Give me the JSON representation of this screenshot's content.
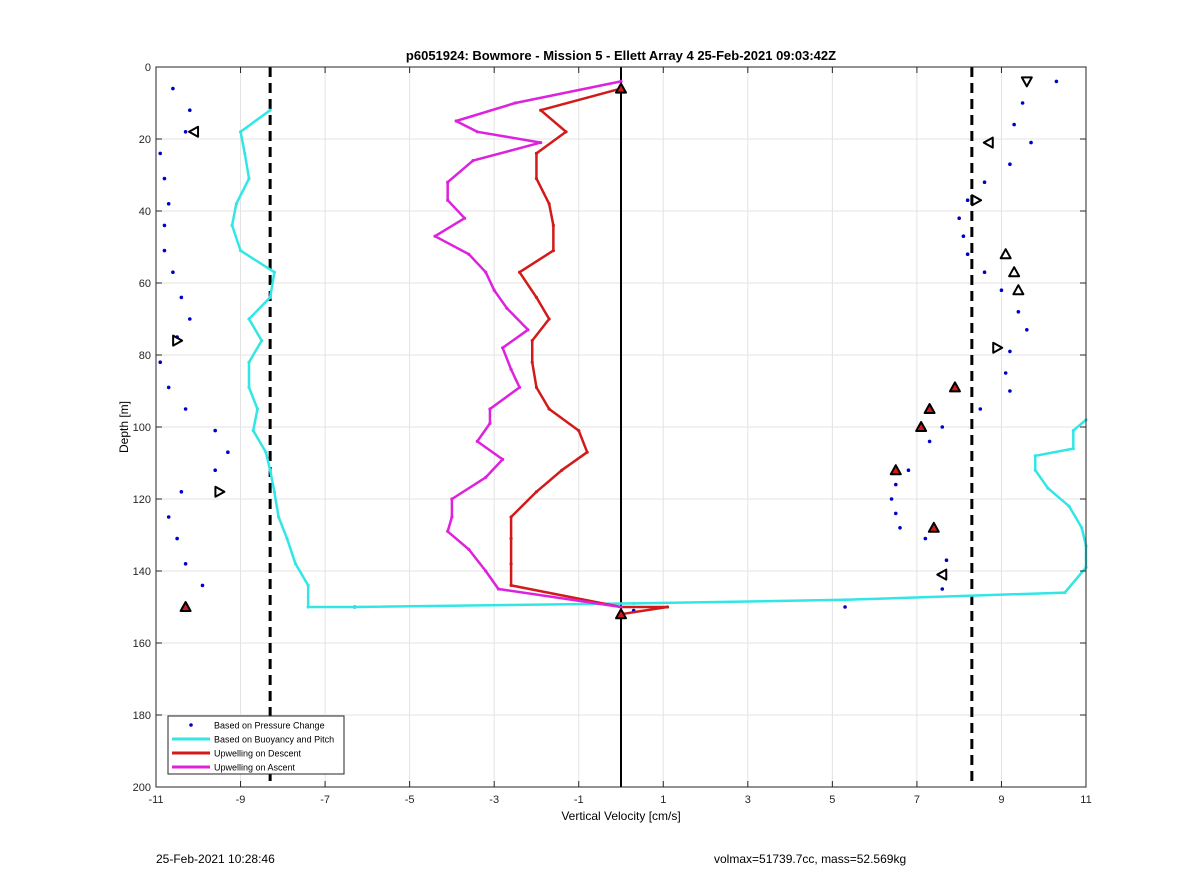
{
  "chart_data": {
    "type": "line",
    "title": "p6051924: Bowmore - Mission 5 - Ellett Array 4 25-Feb-2021 09:03:42Z",
    "xlabel": "Vertical Velocity [cm/s]",
    "ylabel": "Depth [m]",
    "xlim": [
      -11,
      11
    ],
    "ylim": [
      0,
      200
    ],
    "y_reversed": true,
    "grid": true,
    "legend_position": "bottom-left",
    "x_ticks": [
      "-11",
      "-9",
      "-7",
      "-5",
      "-3",
      "-1",
      "1",
      "3",
      "5",
      "7",
      "9",
      "11"
    ],
    "y_ticks": [
      "0",
      "20",
      "40",
      "60",
      "80",
      "100",
      "120",
      "140",
      "160",
      "180",
      "200"
    ],
    "vertical_lines": [
      {
        "x": -8.3,
        "style": "dashed",
        "color": "#000000"
      },
      {
        "x": 0,
        "style": "solid",
        "color": "#000000"
      },
      {
        "x": 8.3,
        "style": "dashed",
        "color": "#000000"
      }
    ],
    "series": [
      {
        "name": "Based on Pressure Change",
        "style": "dots",
        "color": "#0000cc",
        "points": [
          [
            10.3,
            4
          ],
          [
            -10.6,
            6
          ],
          [
            -10.2,
            12
          ],
          [
            9.5,
            10
          ],
          [
            -10.3,
            18
          ],
          [
            9.3,
            16
          ],
          [
            9.7,
            21
          ],
          [
            -10.9,
            24
          ],
          [
            9.2,
            27
          ],
          [
            -10.8,
            31
          ],
          [
            8.6,
            32
          ],
          [
            -10.7,
            38
          ],
          [
            8.2,
            37
          ],
          [
            8.0,
            42
          ],
          [
            -10.8,
            44
          ],
          [
            8.1,
            47
          ],
          [
            -10.8,
            51
          ],
          [
            8.2,
            52
          ],
          [
            -10.6,
            57
          ],
          [
            8.6,
            57
          ],
          [
            -10.4,
            64
          ],
          [
            9.0,
            62
          ],
          [
            -10.2,
            70
          ],
          [
            9.4,
            68
          ],
          [
            -10.5,
            75
          ],
          [
            9.6,
            73
          ],
          [
            -10.9,
            82
          ],
          [
            9.2,
            79
          ],
          [
            -10.7,
            89
          ],
          [
            9.1,
            85
          ],
          [
            -10.3,
            95
          ],
          [
            9.2,
            90
          ],
          [
            8.5,
            95
          ],
          [
            -9.6,
            101
          ],
          [
            7.6,
            100
          ],
          [
            -9.3,
            107
          ],
          [
            7.3,
            104
          ],
          [
            -9.6,
            112
          ],
          [
            6.8,
            112
          ],
          [
            -10.4,
            118
          ],
          [
            6.5,
            116
          ],
          [
            -10.7,
            125
          ],
          [
            6.4,
            120
          ],
          [
            6.5,
            124
          ],
          [
            -10.5,
            131
          ],
          [
            6.6,
            128
          ],
          [
            7.2,
            131
          ],
          [
            -10.3,
            138
          ],
          [
            7.7,
            137
          ],
          [
            -9.9,
            144
          ],
          [
            7.6,
            145
          ],
          [
            -6.3,
            150
          ],
          [
            5.3,
            150
          ],
          [
            0.3,
            151
          ]
        ]
      },
      {
        "name": "Based on Buoyancy and Pitch",
        "style": "line",
        "color": "#33e6e6",
        "points": [
          [
            -8.3,
            12
          ],
          [
            -9.0,
            18
          ],
          [
            -8.9,
            24
          ],
          [
            -8.8,
            31
          ],
          [
            -9.1,
            38
          ],
          [
            -9.2,
            44
          ],
          [
            -9.0,
            51
          ],
          [
            -8.2,
            57
          ],
          [
            -8.3,
            64
          ],
          [
            -8.8,
            70
          ],
          [
            -8.5,
            76
          ],
          [
            -8.8,
            82
          ],
          [
            -8.8,
            89
          ],
          [
            -8.6,
            95
          ],
          [
            -8.7,
            101
          ],
          [
            -8.4,
            107
          ],
          [
            -8.3,
            112
          ],
          [
            -8.2,
            118
          ],
          [
            -8.1,
            125
          ],
          [
            -7.9,
            131
          ],
          [
            -7.7,
            138
          ],
          [
            -7.4,
            144
          ],
          [
            -7.4,
            150
          ],
          [
            -6.3,
            150
          ],
          [
            0.3,
            149
          ],
          [
            5.3,
            148
          ],
          [
            10.5,
            146
          ],
          [
            11.0,
            139
          ],
          [
            11.0,
            133
          ],
          [
            10.9,
            128
          ],
          [
            10.6,
            122
          ],
          [
            10.1,
            117
          ],
          [
            9.8,
            112
          ],
          [
            9.8,
            108
          ],
          [
            10.7,
            106
          ],
          [
            10.7,
            101
          ],
          [
            11.0,
            98
          ]
        ]
      },
      {
        "name": "Upwelling on Descent",
        "style": "line",
        "color": "#d21a1a",
        "points": [
          [
            0.0,
            6
          ],
          [
            -1.9,
            12
          ],
          [
            -1.3,
            18
          ],
          [
            -2.0,
            24
          ],
          [
            -2.0,
            31
          ],
          [
            -1.7,
            38
          ],
          [
            -1.6,
            44
          ],
          [
            -1.6,
            51
          ],
          [
            -2.4,
            57
          ],
          [
            -2.0,
            64
          ],
          [
            -1.7,
            70
          ],
          [
            -2.1,
            76
          ],
          [
            -2.1,
            82
          ],
          [
            -2.0,
            89
          ],
          [
            -1.7,
            95
          ],
          [
            -1.0,
            101
          ],
          [
            -0.8,
            107
          ],
          [
            -1.4,
            112
          ],
          [
            -2.0,
            118
          ],
          [
            -2.6,
            125
          ],
          [
            -2.6,
            131
          ],
          [
            -2.6,
            138
          ],
          [
            -2.6,
            144
          ],
          [
            0.0,
            150
          ],
          [
            1.1,
            150
          ],
          [
            0.0,
            152
          ]
        ]
      },
      {
        "name": "Upwelling on Ascent",
        "style": "line",
        "color": "#dd22dd",
        "points": [
          [
            0.0,
            4
          ],
          [
            -2.5,
            10
          ],
          [
            -3.9,
            15
          ],
          [
            -3.4,
            18
          ],
          [
            -1.9,
            21
          ],
          [
            -3.5,
            26
          ],
          [
            -4.1,
            32
          ],
          [
            -4.1,
            37
          ],
          [
            -3.7,
            42
          ],
          [
            -4.4,
            47
          ],
          [
            -3.6,
            52
          ],
          [
            -3.2,
            57
          ],
          [
            -3.0,
            62
          ],
          [
            -2.7,
            67
          ],
          [
            -2.2,
            73
          ],
          [
            -2.8,
            78
          ],
          [
            -2.6,
            84
          ],
          [
            -2.4,
            89
          ],
          [
            -3.1,
            95
          ],
          [
            -3.1,
            99
          ],
          [
            -3.4,
            104
          ],
          [
            -2.8,
            109
          ],
          [
            -3.2,
            114
          ],
          [
            -4.0,
            120
          ],
          [
            -4.0,
            125
          ],
          [
            -4.1,
            129
          ],
          [
            -3.6,
            134
          ],
          [
            -3.2,
            140
          ],
          [
            -2.9,
            145
          ],
          [
            0.0,
            150
          ]
        ]
      }
    ],
    "markers": [
      {
        "shape": "triangle-down",
        "fill": "none",
        "points": [
          [
            9.6,
            4
          ]
        ]
      },
      {
        "shape": "triangle-left",
        "fill": "none",
        "points": [
          [
            -10.1,
            18
          ],
          [
            8.7,
            21
          ]
        ]
      },
      {
        "shape": "triangle-right",
        "fill": "none",
        "points": [
          [
            8.4,
            37
          ],
          [
            -10.5,
            76
          ],
          [
            8.9,
            78
          ],
          [
            -9.5,
            118
          ]
        ]
      },
      {
        "shape": "triangle-up",
        "fill": "none",
        "points": [
          [
            9.1,
            52
          ],
          [
            9.3,
            57
          ],
          [
            9.4,
            62
          ]
        ]
      },
      {
        "shape": "triangle-left",
        "fill": "none",
        "points": [
          [
            7.6,
            141
          ]
        ]
      },
      {
        "shape": "triangle-up",
        "fill": "#d21a1a",
        "points": [
          [
            7.9,
            89
          ],
          [
            7.3,
            95
          ],
          [
            7.1,
            100
          ],
          [
            6.5,
            112
          ],
          [
            7.4,
            128
          ],
          [
            -10.3,
            150
          ]
        ]
      },
      {
        "shape": "triangle-up",
        "fill": "#d21a1a",
        "points": [
          [
            0.0,
            6
          ],
          [
            0.0,
            152
          ]
        ]
      }
    ]
  },
  "footer": {
    "timestamp": "25-Feb-2021 10:28:46",
    "info": "volmax=51739.7cc, mass=52.569kg"
  }
}
